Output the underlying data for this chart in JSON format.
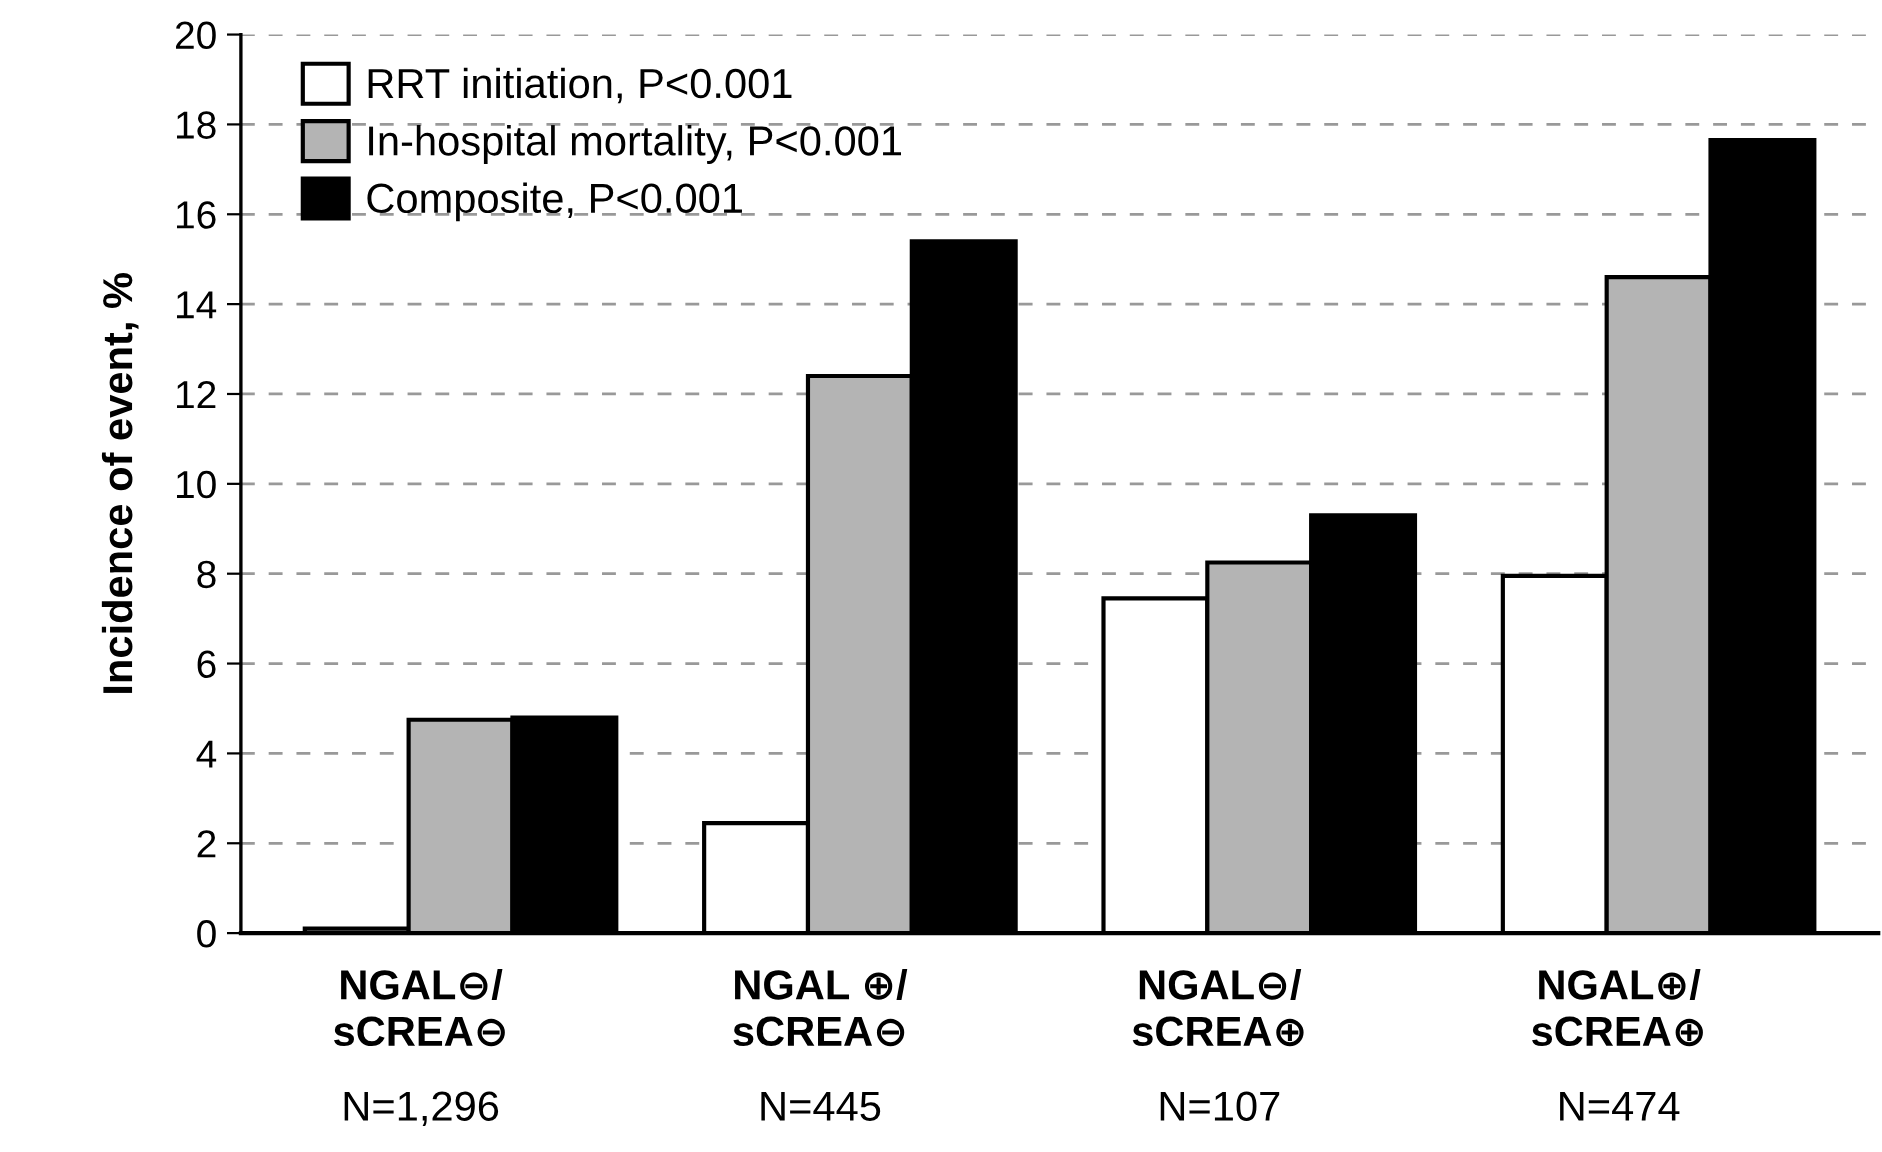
{
  "chart_data": {
    "type": "bar",
    "ylabel": "Incidence of event, %",
    "categories": [
      "NGAL⊖/\nsCREA⊖\nN=1,296",
      "NGAL ⊕/\nsCREA⊖\nN=445",
      "NGAL⊖/\nsCREA⊕\nN=107",
      "NGAL⊕/\nsCREA⊕\nN=474"
    ],
    "series": [
      {
        "name": "RRT initiation, P<0.001",
        "color": "#ffffff",
        "values": [
          0.1,
          2.45,
          7.45,
          7.95
        ]
      },
      {
        "name": "In-hospital mortality, P<0.001",
        "color": "#b4b4b4",
        "values": [
          4.75,
          12.4,
          8.25,
          14.6
        ]
      },
      {
        "name": "Composite, P<0.001",
        "color": "#000000",
        "values": [
          4.8,
          15.4,
          9.3,
          17.65
        ]
      }
    ],
    "ylim": [
      0,
      20
    ],
    "yticks": [
      0,
      2,
      4,
      6,
      8,
      10,
      12,
      14,
      16,
      18,
      20
    ],
    "grid": "y",
    "legend": "top left"
  }
}
